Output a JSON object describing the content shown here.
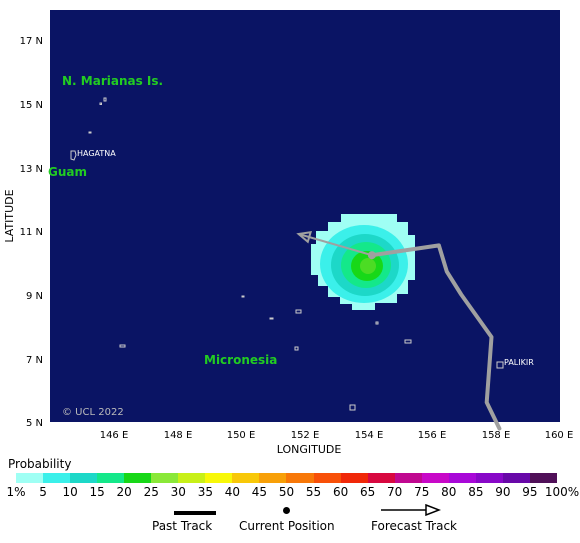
{
  "map": {
    "axis_x_title": "LONGITUDE",
    "axis_y_title": "LATITUDE",
    "lat_ticks": [
      "17 N",
      "15 N",
      "13 N",
      "11 N",
      "9 N",
      "7 N",
      "5 N"
    ],
    "lon_ticks": [
      "146 E",
      "148 E",
      "150 E",
      "152 E",
      "154 E",
      "156 E",
      "158 E",
      "160 E"
    ],
    "lat_range": [
      5,
      17.6
    ],
    "lon_range": [
      143.9,
      159.9
    ],
    "regions": [
      "N. Marianas Is.",
      "Guam",
      "Micronesia"
    ],
    "cities": [
      "HAGATNA",
      "PALIKIR"
    ],
    "copyright": "© UCL 2022",
    "colors": {
      "ocean": "#0a1464",
      "track": "#a0a0a0"
    },
    "storm": {
      "current_position": {
        "lon": 154.0,
        "lat": 10.1
      },
      "past_track": [
        [
          158.0,
          4.8
        ],
        [
          157.6,
          5.6
        ],
        [
          157.75,
          7.6
        ],
        [
          156.8,
          8.9
        ],
        [
          156.35,
          9.6
        ],
        [
          156.1,
          10.4
        ],
        [
          154.0,
          10.1
        ]
      ],
      "forecast_track": [
        [
          154.0,
          10.1
        ],
        [
          151.7,
          10.75
        ]
      ]
    }
  },
  "legend": {
    "title": "Probability",
    "scale_labels": [
      "1%",
      "5",
      "10",
      "15",
      "20",
      "25",
      "30",
      "35",
      "40",
      "45",
      "50",
      "55",
      "60",
      "65",
      "70",
      "75",
      "80",
      "85",
      "90",
      "95",
      "100%"
    ],
    "colors": [
      "#9ffff4",
      "#3bf0ea",
      "#1dd8c8",
      "#14e88a",
      "#18d818",
      "#8ae838",
      "#c8f018",
      "#f8f808",
      "#f8c808",
      "#f8a008",
      "#f87808",
      "#f85008",
      "#f02808",
      "#d80840",
      "#c00890",
      "#c808c8",
      "#a808d8",
      "#8808c8",
      "#6808a8",
      "#501058"
    ],
    "past_track_label": "Past Track",
    "current_position_label": "Current Position",
    "forecast_track_label": "Forecast Track"
  }
}
